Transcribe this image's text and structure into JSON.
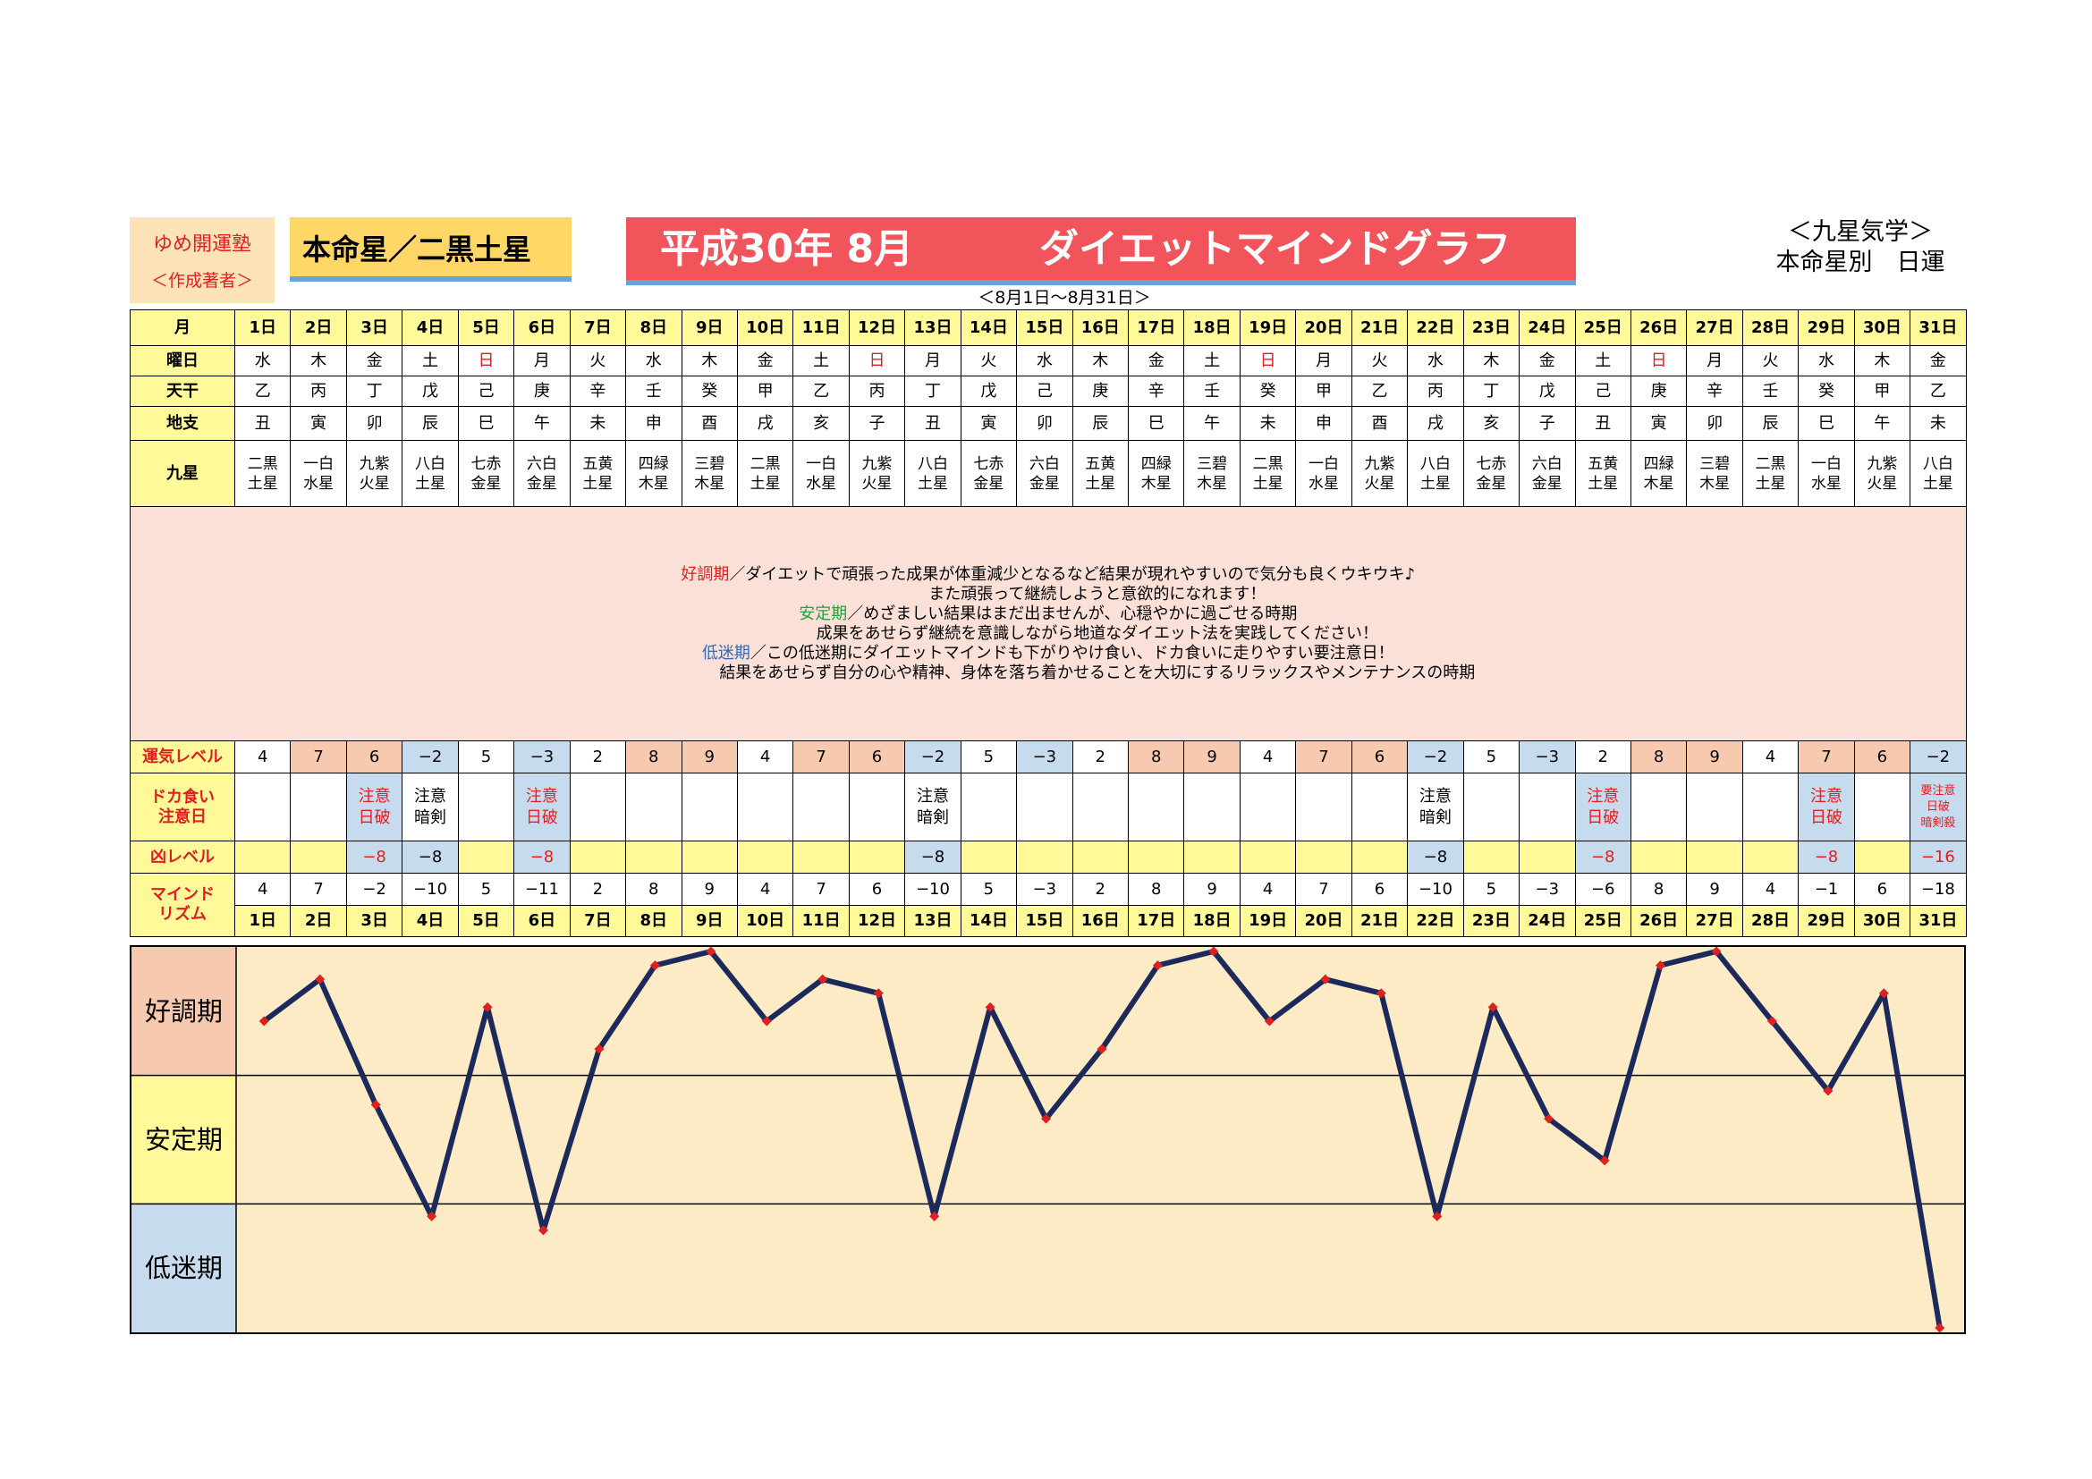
{
  "header": {
    "school": "ゆめ開運塾",
    "author_label": "＜作成著者＞",
    "honmei": "本命星／二黒土星",
    "title_date": "平成30年 8月",
    "title_main": "ダイエットマインドグラフ",
    "subtitle": "＜8月1日～8月31日＞",
    "right_line1": "＜九星気学＞",
    "right_line2": "本命星別　日運"
  },
  "labels": {
    "month": "月",
    "weekday": "曜日",
    "tenkan": "天干",
    "chishi": "地支",
    "kyusei": "九星",
    "unki": "運気レベル",
    "doka_1": "ドカ食い",
    "doka_2": "注意日",
    "kyo": "凶レベル",
    "mind_1": "マインド",
    "mind_2": "リズム"
  },
  "days": [
    "1日",
    "2日",
    "3日",
    "4日",
    "5日",
    "6日",
    "7日",
    "8日",
    "9日",
    "10日",
    "11日",
    "12日",
    "13日",
    "14日",
    "15日",
    "16日",
    "17日",
    "18日",
    "19日",
    "20日",
    "21日",
    "22日",
    "23日",
    "24日",
    "25日",
    "26日",
    "27日",
    "28日",
    "29日",
    "30日",
    "31日"
  ],
  "weekdays": [
    "水",
    "木",
    "金",
    "土",
    "日",
    "月",
    "火",
    "水",
    "木",
    "金",
    "土",
    "日",
    "月",
    "火",
    "水",
    "木",
    "金",
    "土",
    "日",
    "月",
    "火",
    "水",
    "木",
    "金",
    "土",
    "日",
    "月",
    "火",
    "水",
    "木",
    "金"
  ],
  "tenkan": [
    "乙",
    "丙",
    "丁",
    "戊",
    "己",
    "庚",
    "辛",
    "壬",
    "癸",
    "甲",
    "乙",
    "丙",
    "丁",
    "戊",
    "己",
    "庚",
    "辛",
    "壬",
    "癸",
    "甲",
    "乙",
    "丙",
    "丁",
    "戊",
    "己",
    "庚",
    "辛",
    "壬",
    "癸",
    "甲",
    "乙"
  ],
  "chishi": [
    "丑",
    "寅",
    "卯",
    "辰",
    "巳",
    "午",
    "未",
    "申",
    "酉",
    "戌",
    "亥",
    "子",
    "丑",
    "寅",
    "卯",
    "辰",
    "巳",
    "午",
    "未",
    "申",
    "酉",
    "戌",
    "亥",
    "子",
    "丑",
    "寅",
    "卯",
    "辰",
    "巳",
    "午",
    "未"
  ],
  "kyusei": [
    [
      "二黒",
      "土星"
    ],
    [
      "一白",
      "水星"
    ],
    [
      "九紫",
      "火星"
    ],
    [
      "八白",
      "土星"
    ],
    [
      "七赤",
      "金星"
    ],
    [
      "六白",
      "金星"
    ],
    [
      "五黄",
      "土星"
    ],
    [
      "四緑",
      "木星"
    ],
    [
      "三碧",
      "木星"
    ],
    [
      "二黒",
      "土星"
    ],
    [
      "一白",
      "水星"
    ],
    [
      "九紫",
      "火星"
    ],
    [
      "八白",
      "土星"
    ],
    [
      "七赤",
      "金星"
    ],
    [
      "六白",
      "金星"
    ],
    [
      "五黄",
      "土星"
    ],
    [
      "四緑",
      "木星"
    ],
    [
      "三碧",
      "木星"
    ],
    [
      "二黒",
      "土星"
    ],
    [
      "一白",
      "水星"
    ],
    [
      "九紫",
      "火星"
    ],
    [
      "八白",
      "土星"
    ],
    [
      "七赤",
      "金星"
    ],
    [
      "六白",
      "金星"
    ],
    [
      "五黄",
      "土星"
    ],
    [
      "四緑",
      "木星"
    ],
    [
      "三碧",
      "木星"
    ],
    [
      "二黒",
      "土星"
    ],
    [
      "一白",
      "水星"
    ],
    [
      "九紫",
      "火星"
    ],
    [
      "八白",
      "土星"
    ]
  ],
  "description": {
    "k_label": "好調期",
    "k_line1": "／ダイエットで頑張った成果が体重減少となるなど結果が現れやすいので気分も良くウキウキ♪",
    "k_line2": "また頑張って継続しようと意欲的になれます！",
    "a_label": "安定期",
    "a_line1": "／めざましい結果はまだ出ませんが、心穏やかに過ごせる時期",
    "a_line2": "成果をあせらず継続を意識しながら地道なダイエット法を実践してください！",
    "t_label": "低迷期",
    "t_line1": "／この低迷期にダイエットマインドも下がりやけ食い、ドカ食いに走りやすい要注意日！",
    "t_line2": "結果をあせらず自分の心や精神、身体を落ち着かせることを大切にするリラックスやメンテナンスの時期"
  },
  "unki": [
    "4",
    "7",
    "6",
    "−2",
    "5",
    "−3",
    "2",
    "8",
    "9",
    "4",
    "7",
    "6",
    "−2",
    "5",
    "−3",
    "2",
    "8",
    "9",
    "4",
    "7",
    "6",
    "−2",
    "5",
    "−3",
    "2",
    "8",
    "9",
    "4",
    "7",
    "6",
    "−2"
  ],
  "unki_shade": [
    "",
    "o",
    "o",
    "b",
    "",
    "b",
    "",
    "o",
    "o",
    "",
    "o",
    "o",
    "b",
    "",
    "b",
    "",
    "o",
    "o",
    "",
    "o",
    "o",
    "b",
    "",
    "b",
    "",
    "o",
    "o",
    "",
    "o",
    "o",
    "b"
  ],
  "doka": [
    [],
    [],
    [
      "注意",
      "日破"
    ],
    [
      "注意",
      "暗剣"
    ],
    [],
    [
      "注意",
      "日破"
    ],
    [],
    [],
    [],
    [],
    [],
    [],
    [
      "注意",
      "暗剣"
    ],
    [],
    [],
    [],
    [],
    [],
    [],
    [],
    [],
    [
      "注意",
      "暗剣"
    ],
    [],
    [],
    [
      "注意",
      "日破"
    ],
    [],
    [],
    [],
    [
      "注意",
      "日破"
    ],
    [],
    [
      "要注意",
      "日破",
      "暗剣殺"
    ]
  ],
  "doka_color": [
    "",
    "",
    "r",
    "k",
    "",
    "r",
    "",
    "",
    "",
    "",
    "",
    "",
    "k",
    "",
    "",
    "",
    "",
    "",
    "",
    "",
    "",
    "k",
    "",
    "",
    "r",
    "",
    "",
    "",
    "r",
    "",
    "r"
  ],
  "kyo": [
    "",
    "",
    "−8",
    "−8",
    "",
    "−8",
    "",
    "",
    "",
    "",
    "",
    "",
    "−8",
    "",
    "",
    "",
    "",
    "",
    "",
    "",
    "",
    "−8",
    "",
    "",
    "−8",
    "",
    "",
    "",
    "−8",
    "",
    "−16"
  ],
  "kyo_color": [
    "",
    "",
    "r",
    "k",
    "",
    "r",
    "",
    "",
    "",
    "",
    "",
    "",
    "k",
    "",
    "",
    "",
    "",
    "",
    "",
    "",
    "",
    "k",
    "",
    "",
    "r",
    "",
    "",
    "",
    "r",
    "",
    "r"
  ],
  "mind": [
    "4",
    "7",
    "−2",
    "−10",
    "5",
    "−11",
    "2",
    "8",
    "9",
    "4",
    "7",
    "6",
    "−10",
    "5",
    "−3",
    "2",
    "8",
    "9",
    "4",
    "7",
    "6",
    "−10",
    "5",
    "−3",
    "−6",
    "8",
    "9",
    "4",
    "−1",
    "6",
    "−18"
  ],
  "chart_data": {
    "type": "line",
    "categories": [
      "1日",
      "2日",
      "3日",
      "4日",
      "5日",
      "6日",
      "7日",
      "8日",
      "9日",
      "10日",
      "11日",
      "12日",
      "13日",
      "14日",
      "15日",
      "16日",
      "17日",
      "18日",
      "19日",
      "20日",
      "21日",
      "22日",
      "23日",
      "24日",
      "25日",
      "26日",
      "27日",
      "28日",
      "29日",
      "30日",
      "31日"
    ],
    "values": [
      4,
      7,
      -2,
      -10,
      5,
      -11,
      2,
      8,
      9,
      4,
      7,
      6,
      -10,
      5,
      -3,
      2,
      8,
      9,
      4,
      7,
      6,
      -10,
      5,
      -3,
      -6,
      8,
      9,
      4,
      -1,
      6,
      -18
    ],
    "ylim": [
      -18,
      9
    ],
    "bands": [
      "好調期",
      "安定期",
      "低迷期"
    ],
    "band_colors": [
      "#f7c9ae",
      "#fff99a",
      "#c7dbee"
    ],
    "plot_bg": "#fdebc6",
    "line_color": "#1b2a5a",
    "marker_color": "#e02020"
  }
}
